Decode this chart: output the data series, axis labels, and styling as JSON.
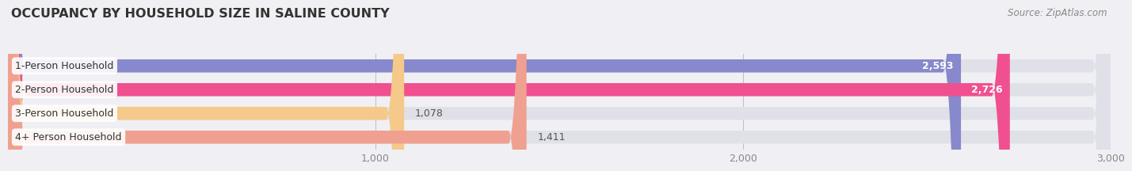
{
  "title": "OCCUPANCY BY HOUSEHOLD SIZE IN SALINE COUNTY",
  "source": "Source: ZipAtlas.com",
  "categories": [
    "1-Person Household",
    "2-Person Household",
    "3-Person Household",
    "4+ Person Household"
  ],
  "values": [
    2593,
    2726,
    1078,
    1411
  ],
  "bar_colors": [
    "#8888cc",
    "#f05090",
    "#f5c98a",
    "#f0a090"
  ],
  "xmax": 3000,
  "xticks": [
    1000,
    2000,
    3000
  ],
  "xtick_labels": [
    "1,000",
    "2,000",
    "3,000"
  ],
  "background_color": "#f0f0f4",
  "bar_background_color": "#e0e0e8",
  "title_fontsize": 11.5,
  "label_fontsize": 9,
  "value_fontsize": 9,
  "source_fontsize": 8.5
}
